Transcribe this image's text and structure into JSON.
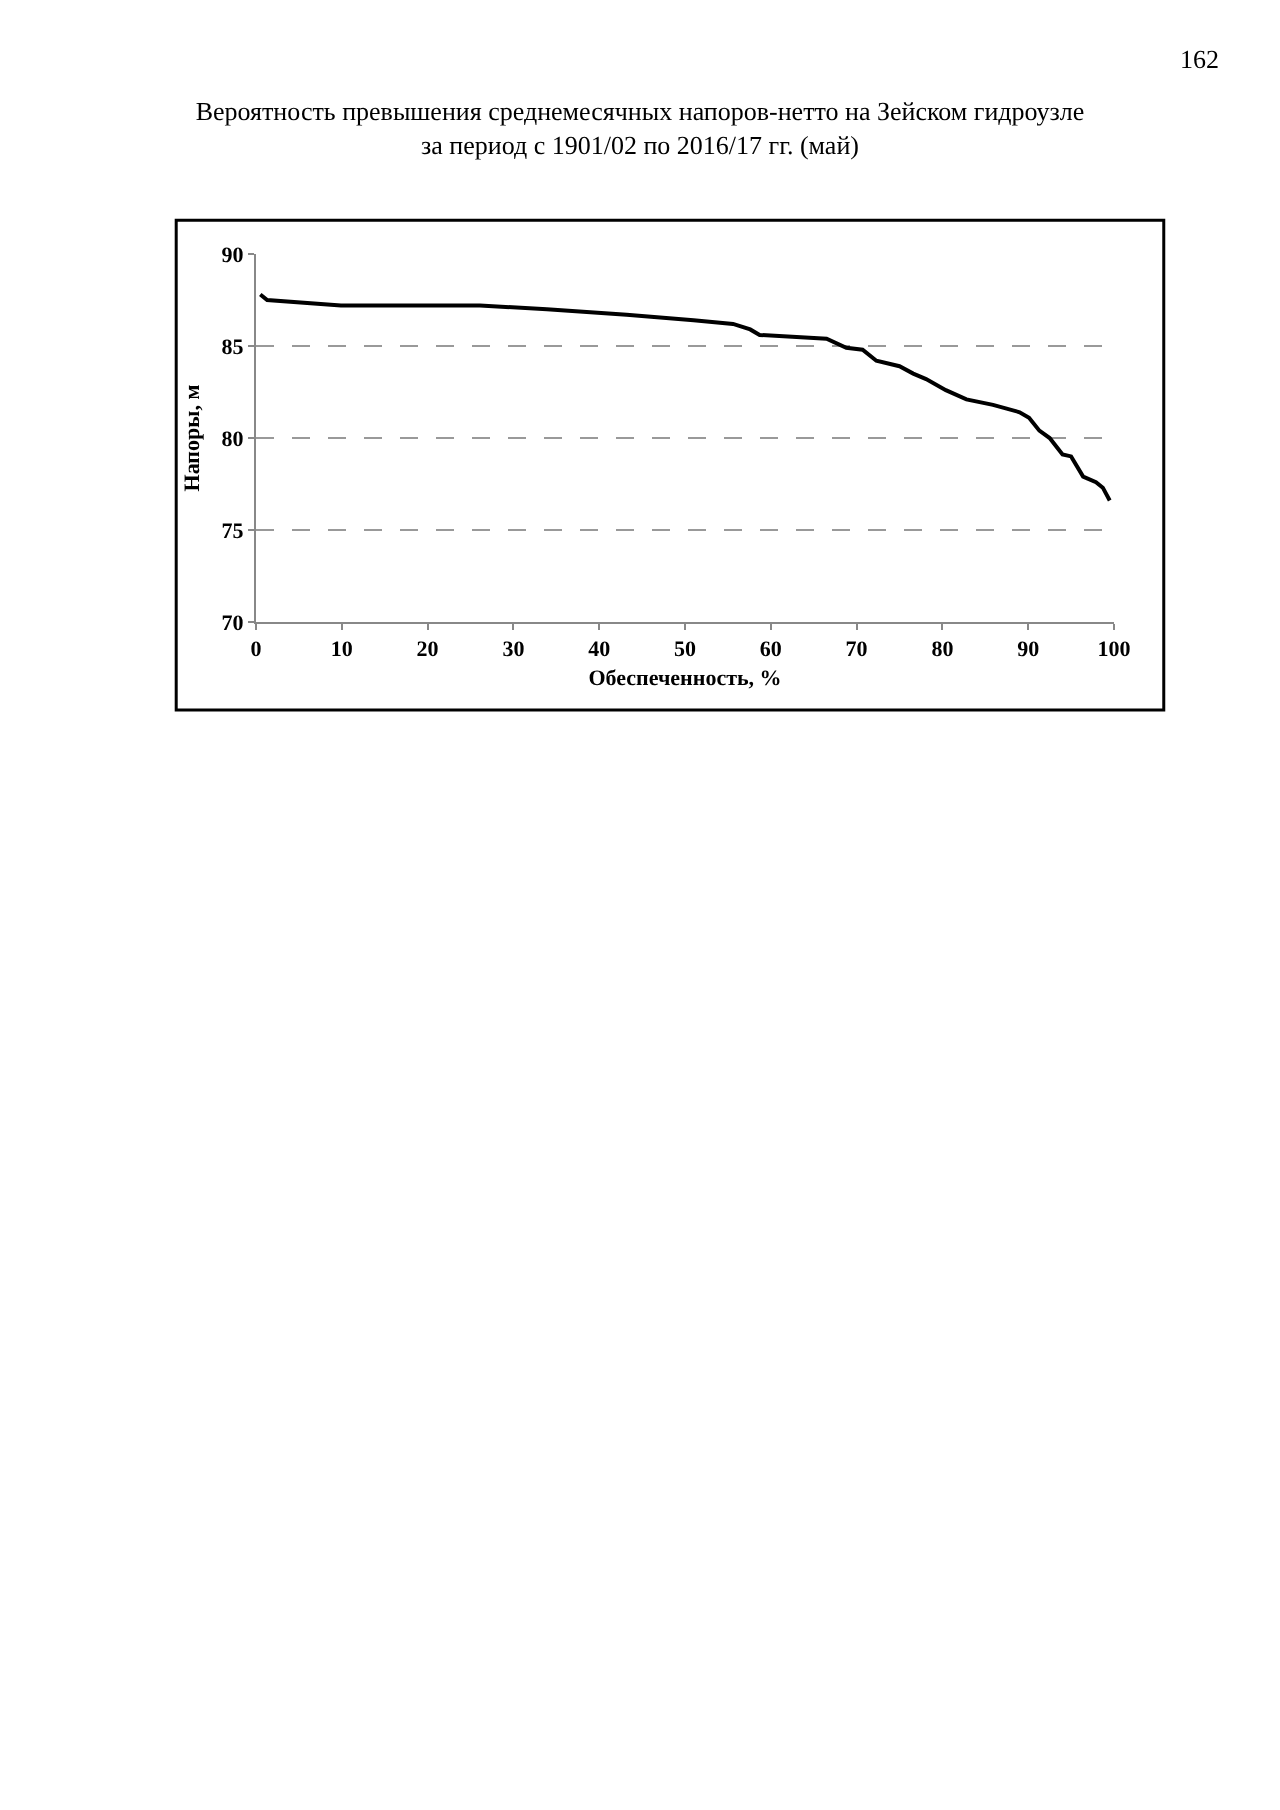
{
  "chart_data": {
    "type": "line",
    "title": "Вероятность превышения среднемесячных напоров-нетто на Зейском гидроузле\nза период с 1901/02 по 2016/17 гг. (май)",
    "xlabel": "Обеспеченность, %",
    "ylabel": "Напоры, м",
    "annotations": [
      "162"
    ],
    "x": [
      0.5,
      1.3,
      9.9,
      19.9,
      26.1,
      33.9,
      43.2,
      51,
      55.6,
      57.6,
      58.7,
      66.5,
      68.8,
      70.7,
      72.3,
      75,
      76.6,
      78.1,
      80.4,
      82.8,
      85.9,
      89,
      90.1,
      91.3,
      92.5,
      94,
      95,
      96.4,
      97.9,
      98.7,
      99.5
    ],
    "series": [
      {
        "color": "#000000",
        "values": [
          87.8,
          87.5,
          87.2,
          87.2,
          87.2,
          87.0,
          86.7,
          86.4,
          86.2,
          85.9,
          85.6,
          85.4,
          84.9,
          84.8,
          84.2,
          83.9,
          83.5,
          83.2,
          82.6,
          82.1,
          81.8,
          81.4,
          81.1,
          80.4,
          80.0,
          79.1,
          79.0,
          77.9,
          77.6,
          77.3,
          76.6
        ]
      }
    ],
    "xlim": [
      0,
      100
    ],
    "xticks": [
      0,
      10,
      20,
      30,
      40,
      50,
      60,
      70,
      80,
      90,
      100
    ],
    "ylim": [
      70,
      90
    ],
    "yticks": [
      70,
      75,
      80,
      85,
      90
    ],
    "grid": "y",
    "marker": "none",
    "line_style": "solid"
  }
}
